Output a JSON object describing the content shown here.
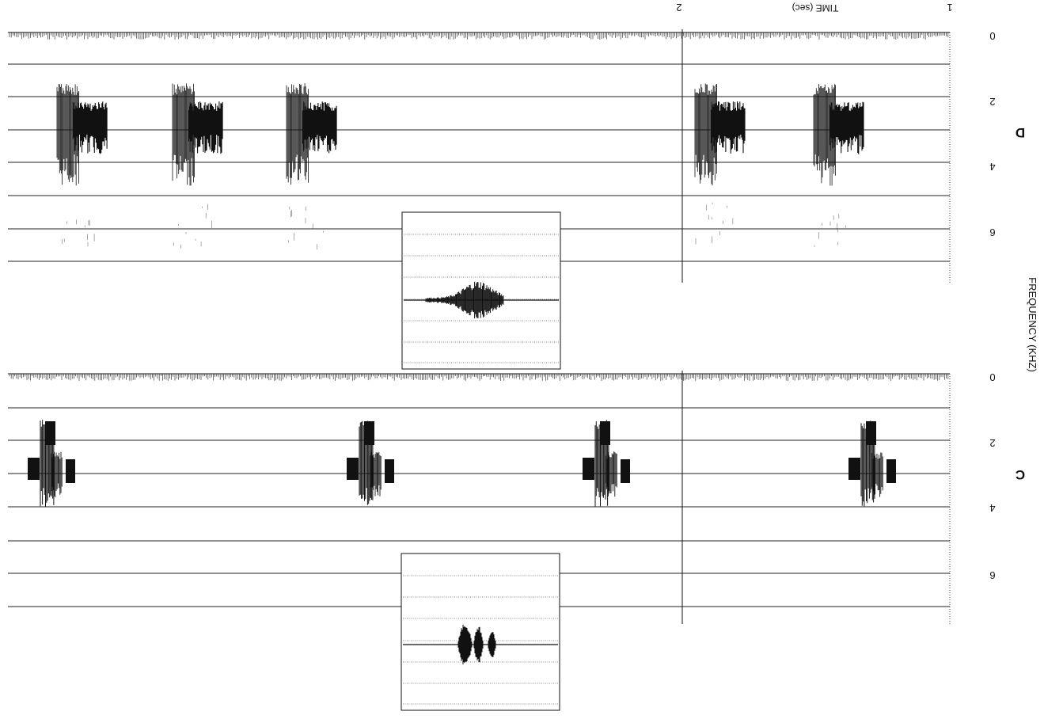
{
  "time_axis": {
    "title": "TIME (sec)",
    "ticks": [
      {
        "label": "1"
      },
      {
        "label": "2"
      }
    ]
  },
  "frequency_axis": {
    "title": "FREQUENCY (KHZ)"
  },
  "panels": [
    {
      "id": "D",
      "label": "D",
      "freq_ticks": [
        "0",
        "2",
        "4",
        "6"
      ],
      "notes_count": 5
    },
    {
      "id": "C",
      "label": "C",
      "freq_ticks": [
        "0",
        "2",
        "4",
        "6"
      ],
      "notes_count": 4
    }
  ],
  "colors": {
    "ink": "#111111",
    "grid": "#222222",
    "background": "#ffffff"
  }
}
